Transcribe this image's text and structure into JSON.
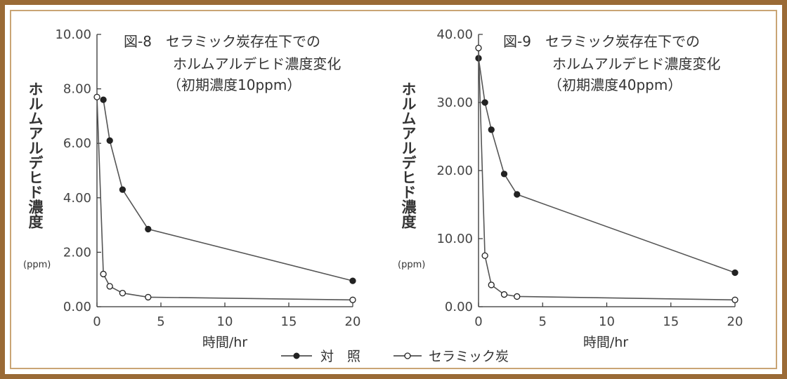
{
  "chart_data": [
    {
      "type": "line",
      "title_lines": [
        "図-8　セラミック炭存在下での",
        "ホルムアルデヒド濃度変化",
        "（初期濃度10ppm）"
      ],
      "ylabel": "ホルムアルデヒド濃度",
      "yunit": "(ppm)",
      "xlabel": "時間/hr",
      "ylim": [
        0,
        10
      ],
      "xlim": [
        0,
        20
      ],
      "yticks": [
        "0.00",
        "2.00",
        "4.00",
        "6.00",
        "8.00",
        "10.00"
      ],
      "xticks": [
        "0",
        "5",
        "10",
        "15",
        "20"
      ],
      "grid": false,
      "series": [
        {
          "name": "対　照",
          "marker": "filled",
          "x": [
            0.5,
            1,
            2,
            4,
            20
          ],
          "y": [
            7.6,
            6.1,
            4.3,
            2.85,
            0.95
          ]
        },
        {
          "name": "セラミック炭",
          "marker": "open",
          "x": [
            0,
            0.5,
            1,
            2,
            4,
            20
          ],
          "y": [
            7.7,
            1.2,
            0.75,
            0.5,
            0.35,
            0.25
          ]
        }
      ]
    },
    {
      "type": "line",
      "title_lines": [
        "図-9　セラミック炭存在下での",
        "ホルムアルデヒド濃度変化",
        "（初期濃度40ppm）"
      ],
      "ylabel": "ホルムアルデヒド濃度",
      "yunit": "(ppm)",
      "xlabel": "時間/hr",
      "ylim": [
        0,
        40
      ],
      "xlim": [
        0,
        20
      ],
      "yticks": [
        "0.00",
        "10.00",
        "20.00",
        "30.00",
        "40.00"
      ],
      "xticks": [
        "0",
        "5",
        "10",
        "15",
        "20"
      ],
      "grid": false,
      "series": [
        {
          "name": "対　照",
          "marker": "filled",
          "x": [
            0,
            0.5,
            1,
            2,
            3,
            20
          ],
          "y": [
            36.5,
            30,
            26,
            19.5,
            16.5,
            5
          ]
        },
        {
          "name": "セラミック炭",
          "marker": "open",
          "x": [
            0,
            0.5,
            1,
            2,
            3,
            20
          ],
          "y": [
            38,
            7.5,
            3.2,
            1.8,
            1.5,
            1
          ]
        }
      ]
    }
  ],
  "legend": {
    "position": "bottom-center",
    "items": [
      {
        "label": "対　照",
        "marker": "filled"
      },
      {
        "label": "セラミック炭",
        "marker": "open"
      }
    ]
  },
  "colors": {
    "frame": "#9a6a36",
    "series_line": "#555555",
    "marker": "#222222"
  }
}
